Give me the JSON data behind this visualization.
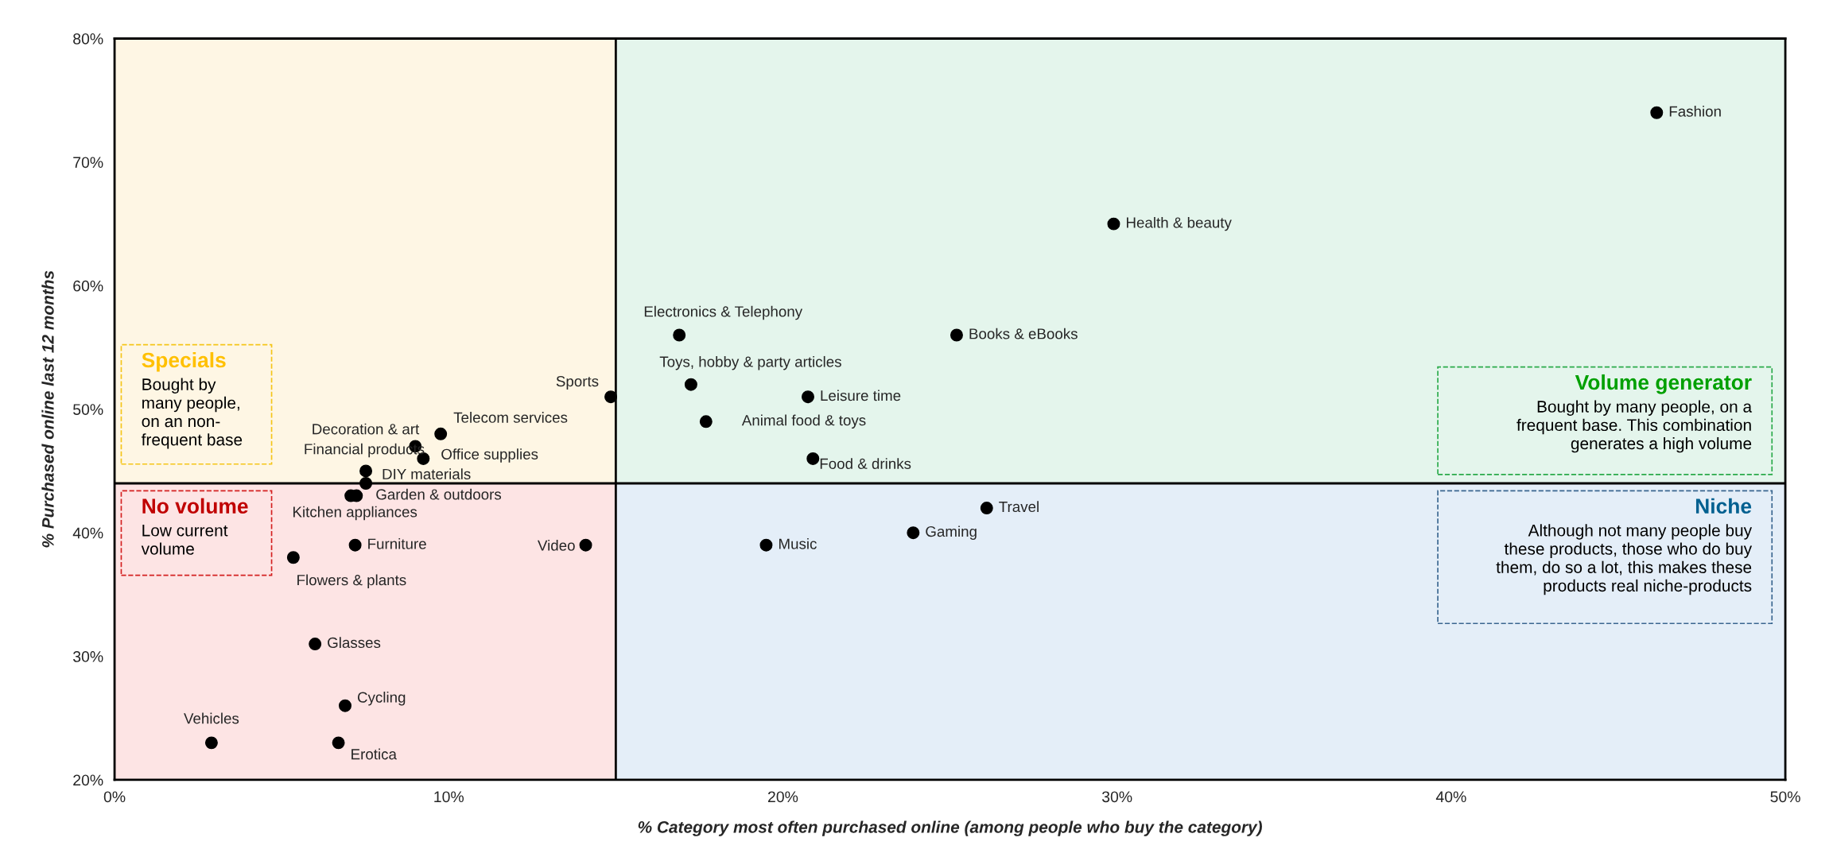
{
  "chart_data": {
    "type": "scatter",
    "xlabel": "% Category most often purchased online (among people who buy the category)",
    "ylabel": "% Purchased online last 12 months",
    "series": [
      {
        "color": "#000000",
        "marker": "circle",
        "x": [
          46.15,
          29.9,
          25.2,
          16.9,
          17.25,
          20.75,
          17.7,
          20.9,
          14.85,
          26.1,
          23.9,
          19.5,
          14.1,
          9.76,
          9.0,
          7.52,
          9.24,
          7.52,
          7.24,
          7.07,
          7.2,
          5.35,
          6.0,
          6.9,
          2.9,
          6.7
        ],
        "values": [
          74,
          65,
          56,
          56,
          52,
          51,
          49,
          46,
          51,
          42,
          40,
          39,
          39,
          48,
          47,
          45,
          46,
          44,
          43,
          43,
          39,
          38,
          31,
          26,
          23,
          23
        ]
      }
    ],
    "annotations": [
      {
        "text": "Fashion",
        "x": 46.15,
        "y": 74
      },
      {
        "text": "Health & beauty",
        "x": 29.9,
        "y": 65
      },
      {
        "text": "Books & eBooks",
        "x": 25.2,
        "y": 56
      },
      {
        "text": "Electronics & Telephony",
        "x": 16.9,
        "y": 56
      },
      {
        "text": "Toys, hobby & party articles",
        "x": 17.25,
        "y": 52
      },
      {
        "text": "Leisure time",
        "x": 20.75,
        "y": 51
      },
      {
        "text": "Animal food & toys",
        "x": 17.7,
        "y": 49
      },
      {
        "text": "Food & drinks",
        "x": 20.9,
        "y": 46
      },
      {
        "text": "Sports",
        "x": 14.85,
        "y": 51
      },
      {
        "text": "Travel",
        "x": 26.1,
        "y": 42
      },
      {
        "text": "Gaming",
        "x": 23.9,
        "y": 40
      },
      {
        "text": "Music",
        "x": 19.5,
        "y": 39
      },
      {
        "text": "Video",
        "x": 14.1,
        "y": 39
      },
      {
        "text": "Telecom services",
        "x": 9.76,
        "y": 48
      },
      {
        "text": "Decoration & art",
        "x": 9.0,
        "y": 47
      },
      {
        "text": "Financial products",
        "x": 7.52,
        "y": 45
      },
      {
        "text": "Office supplies",
        "x": 9.24,
        "y": 46
      },
      {
        "text": "DIY materials",
        "x": 7.52,
        "y": 44
      },
      {
        "text": "Garden & outdoors",
        "x": 7.24,
        "y": 43
      },
      {
        "text": "Kitchen appliances",
        "x": 7.07,
        "y": 43
      },
      {
        "text": "Furniture",
        "x": 7.2,
        "y": 39
      },
      {
        "text": "Flowers & plants",
        "x": 5.35,
        "y": 38
      },
      {
        "text": "Glasses",
        "x": 6.0,
        "y": 31
      },
      {
        "text": "Cycling",
        "x": 6.9,
        "y": 26
      },
      {
        "text": "Vehicles",
        "x": 2.9,
        "y": 23
      },
      {
        "text": "Erotica",
        "x": 6.7,
        "y": 23
      },
      "Specials",
      "Bought by\nmany people,\non an non-\nfrequent base",
      "No volume",
      "Low current\nvolume",
      "Volume generator",
      "Bought by many people, on a\nfrequent base. This combination\ngenerates a high volume",
      "Niche",
      "Although not many people buy\nthese products, those who do buy\nthem, do so a lot, this makes these\nproducts real niche-products"
    ],
    "ref_lines": [
      {
        "axis": "x",
        "value": 15,
        "color": "#000000"
      },
      {
        "axis": "y",
        "value": 44,
        "color": "#000000"
      }
    ],
    "xlim": [
      0,
      50
    ],
    "ylim": [
      20,
      80
    ],
    "xticks": [
      {
        "value": 0,
        "label": "0%"
      },
      {
        "value": 10,
        "label": "10%"
      },
      {
        "value": 20,
        "label": "20%"
      },
      {
        "value": 30,
        "label": "30%"
      },
      {
        "value": 40,
        "label": "40%"
      },
      {
        "value": 50,
        "label": "50%"
      }
    ],
    "yticks": [
      {
        "value": 20,
        "label": "20%"
      },
      {
        "value": 30,
        "label": "30%"
      },
      {
        "value": 40,
        "label": "40%"
      },
      {
        "value": 50,
        "label": "50%"
      },
      {
        "value": 60,
        "label": "60%"
      },
      {
        "value": 70,
        "label": "70%"
      },
      {
        "value": 80,
        "label": "80%"
      }
    ],
    "grid": false,
    "legend": false
  }
}
